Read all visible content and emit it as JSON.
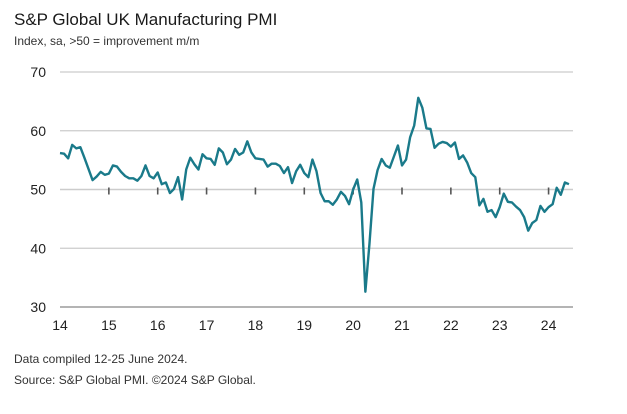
{
  "header": {
    "title": "S&P Global UK Manufacturing PMI",
    "subtitle": "Index, sa, >50 = improvement m/m"
  },
  "footer": {
    "line1": "Data compiled 12-25 June 2024.",
    "line2": "Source: S&P Global PMI. ©2024 S&P Global."
  },
  "colors": {
    "line": "#1a7a8a",
    "grid": "#cccccc",
    "axis": "#888888"
  },
  "chart_data": {
    "type": "line",
    "title": "S&P Global UK Manufacturing PMI",
    "subtitle": "Index, sa, >50 = improvement m/m",
    "ylim": [
      30,
      70
    ],
    "yticks": [
      30,
      40,
      50,
      60,
      70
    ],
    "xlim": [
      2014.0,
      2024.5
    ],
    "xticks": [
      {
        "value": 2014,
        "label": "14"
      },
      {
        "value": 2015,
        "label": "15"
      },
      {
        "value": 2016,
        "label": "16"
      },
      {
        "value": 2017,
        "label": "17"
      },
      {
        "value": 2018,
        "label": "18"
      },
      {
        "value": 2019,
        "label": "19"
      },
      {
        "value": 2020,
        "label": "20"
      },
      {
        "value": 2021,
        "label": "21"
      },
      {
        "value": 2022,
        "label": "22"
      },
      {
        "value": 2023,
        "label": "23"
      },
      {
        "value": 2024,
        "label": "24"
      }
    ],
    "grid": true,
    "x_start": "2014-01",
    "series": [
      {
        "values": [
          56.2,
          56.1,
          55.3,
          57.6,
          57.0,
          57.2,
          55.4,
          53.5,
          51.6,
          52.2,
          53.0,
          52.5,
          52.7,
          54.1,
          53.9,
          53.0,
          52.3,
          51.9,
          51.9,
          51.5,
          52.3,
          54.1,
          52.3,
          51.9,
          52.9,
          50.9,
          51.2,
          49.4,
          50.1,
          52.1,
          48.3,
          53.4,
          55.4,
          54.3,
          53.4,
          56.0,
          55.3,
          55.2,
          54.2,
          57.0,
          56.3,
          54.3,
          55.1,
          56.9,
          55.9,
          56.3,
          58.2,
          56.3,
          55.3,
          55.2,
          55.1,
          53.9,
          54.4,
          54.4,
          54.0,
          52.8,
          53.8,
          51.1,
          53.1,
          54.2,
          52.8,
          52.1,
          55.1,
          53.1,
          49.4,
          48.0,
          48.0,
          47.4,
          48.3,
          49.6,
          48.9,
          47.5,
          50.0,
          51.7,
          47.8,
          32.6,
          40.7,
          50.1,
          53.3,
          55.2,
          54.1,
          53.7,
          55.6,
          57.5,
          54.1,
          55.1,
          58.9,
          60.9,
          65.6,
          63.9,
          60.4,
          60.3,
          57.1,
          57.8,
          58.1,
          57.9,
          57.3,
          58.0,
          55.2,
          55.8,
          54.6,
          52.8,
          52.1,
          47.3,
          48.4,
          46.2,
          46.5,
          45.3,
          47.0,
          49.3,
          47.9,
          47.8,
          47.1,
          46.5,
          45.3,
          43.0,
          44.3,
          44.8,
          47.2,
          46.2,
          47.0,
          47.5,
          50.3,
          49.1,
          51.2,
          50.9
        ]
      }
    ]
  }
}
